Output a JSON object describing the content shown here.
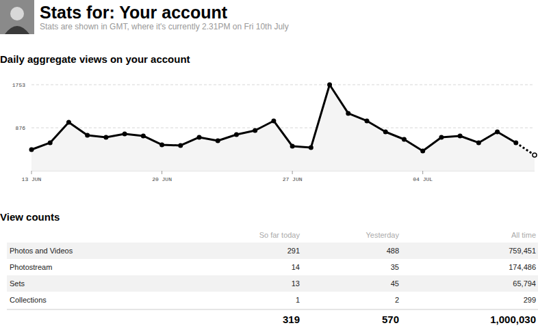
{
  "header": {
    "title": "Stats for: Your account",
    "subtitle": "Stats are shown in GMT, where it's currently 2.31PM on Fri 10th July"
  },
  "chart_data": {
    "type": "line",
    "title": "Daily aggregate views on your account",
    "categories": [
      "13 JUN",
      null,
      null,
      null,
      null,
      null,
      null,
      "20 JUN",
      null,
      null,
      null,
      null,
      null,
      null,
      "27 JUN",
      null,
      null,
      null,
      null,
      null,
      null,
      "04 JUL",
      null,
      null,
      null,
      null,
      null,
      null
    ],
    "values": [
      431,
      571,
      988,
      724,
      682,
      752,
      710,
      529,
      515,
      682,
      612,
      738,
      821,
      1016,
      501,
      473,
      1753,
      1169,
      1016,
      793,
      640,
      404,
      682,
      710,
      571,
      793,
      570,
      319
    ],
    "color": "#000000",
    "ylim": [
      0,
      1753
    ],
    "yticks": [
      876,
      1753
    ],
    "grid": true,
    "marker": "circle"
  },
  "table": {
    "title": "View counts",
    "columns": [
      "So far today",
      "Yesterday",
      "All time"
    ],
    "rows": [
      [
        "Photos and Videos",
        "291",
        "488",
        "759,451"
      ],
      [
        "Photostream",
        "14",
        "35",
        "174,486"
      ],
      [
        "Sets",
        "13",
        "45",
        "65,794"
      ],
      [
        "Collections",
        "1",
        "2",
        "299"
      ]
    ],
    "totals": [
      "319",
      "570",
      "1,000,030"
    ]
  }
}
